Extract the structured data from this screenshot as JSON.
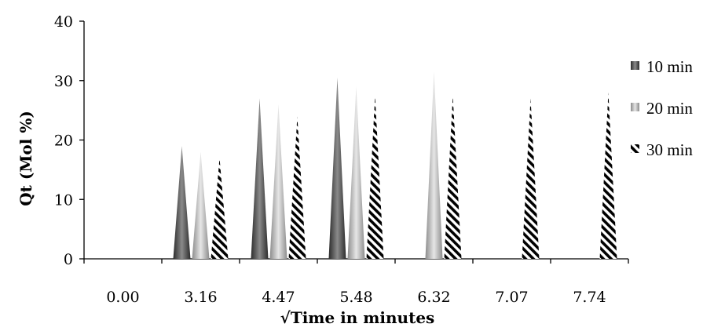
{
  "chart_data": {
    "type": "bar",
    "xlabel": "√Time in minutes",
    "ylabel": "Qt (Mol %)",
    "ylim": [
      0,
      40
    ],
    "yticks": [
      0,
      10,
      20,
      30,
      40
    ],
    "categories": [
      "0.00",
      "3.16",
      "4.47",
      "5.48",
      "6.32",
      "7.07",
      "7.74"
    ],
    "series": [
      {
        "name": "10 min",
        "values": [
          0,
          19,
          27,
          30.5,
          0,
          0,
          0
        ],
        "color": "#555555",
        "pattern": "dark-gradient"
      },
      {
        "name": "20 min",
        "values": [
          0,
          18,
          26,
          29,
          31.5,
          0,
          0
        ],
        "color": "#b0b0b0",
        "pattern": "light-gradient"
      },
      {
        "name": "30 min",
        "values": [
          0,
          17,
          24,
          27.5,
          27.5,
          27,
          28
        ],
        "color": "#000000",
        "pattern": "diagonal-stripes"
      }
    ],
    "legend_position": "right",
    "grid": false
  }
}
